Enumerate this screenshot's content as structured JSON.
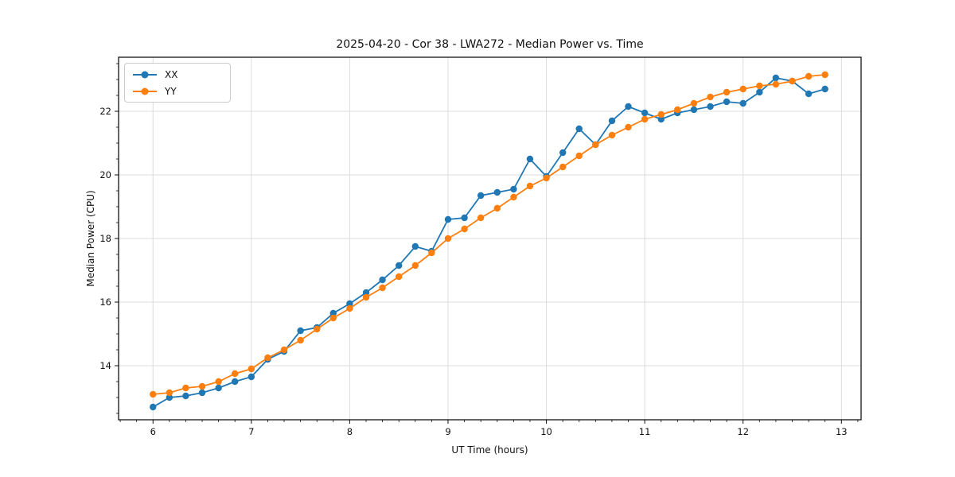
{
  "chart_data": {
    "type": "line",
    "title": "2025-04-20 - Cor 38 - LWA272 - Median Power vs. Time",
    "xlabel": "UT Time (hours)",
    "ylabel": "Median Power (CPU)",
    "xlim": [
      5.65,
      13.2
    ],
    "ylim": [
      12.3,
      23.7
    ],
    "x_ticks": [
      6,
      7,
      8,
      9,
      10,
      11,
      12,
      13
    ],
    "y_ticks": [
      14,
      16,
      18,
      20,
      22
    ],
    "x_minor_step": 0.1667,
    "y_minor_step": 0.5,
    "grid": "major",
    "grid_color": "#dcdcdc",
    "legend_position": "upper left",
    "x": [
      6.0,
      6.167,
      6.333,
      6.5,
      6.667,
      6.833,
      7.0,
      7.167,
      7.333,
      7.5,
      7.667,
      7.833,
      8.0,
      8.167,
      8.333,
      8.5,
      8.667,
      8.833,
      9.0,
      9.167,
      9.333,
      9.5,
      9.667,
      9.833,
      10.0,
      10.167,
      10.333,
      10.5,
      10.667,
      10.833,
      11.0,
      11.167,
      11.333,
      11.5,
      11.667,
      11.833,
      12.0,
      12.167,
      12.333,
      12.5,
      12.667,
      12.833
    ],
    "series": [
      {
        "name": "XX",
        "color": "#1f77b4",
        "values": [
          12.7,
          13.0,
          13.05,
          13.15,
          13.3,
          13.5,
          13.65,
          14.2,
          14.45,
          15.1,
          15.2,
          15.65,
          15.95,
          16.3,
          16.7,
          17.15,
          17.75,
          17.6,
          18.6,
          18.65,
          19.35,
          19.45,
          19.55,
          20.5,
          19.95,
          20.7,
          21.45,
          20.95,
          21.7,
          22.15,
          21.95,
          21.75,
          21.95,
          22.05,
          22.15,
          22.3,
          22.25,
          22.6,
          23.05,
          22.95,
          22.55,
          22.7
        ]
      },
      {
        "name": "YY",
        "color": "#ff7f0e",
        "values": [
          13.1,
          13.15,
          13.3,
          13.35,
          13.5,
          13.75,
          13.9,
          14.25,
          14.5,
          14.8,
          15.15,
          15.5,
          15.8,
          16.15,
          16.45,
          16.8,
          17.15,
          17.55,
          18.0,
          18.3,
          18.65,
          18.95,
          19.3,
          19.65,
          19.9,
          20.25,
          20.6,
          20.95,
          21.25,
          21.5,
          21.75,
          21.9,
          22.05,
          22.25,
          22.45,
          22.6,
          22.7,
          22.8,
          22.85,
          22.95,
          23.1,
          23.15
        ]
      }
    ]
  }
}
